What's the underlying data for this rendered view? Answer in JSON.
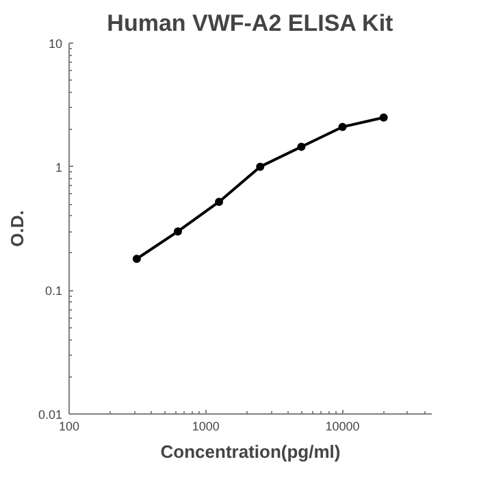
{
  "chart_data": {
    "type": "line",
    "title": "Human VWF-A2 ELISA Kit",
    "xlabel": "Concentration(pg/ml)",
    "ylabel": "O.D.",
    "x": [
      312.5,
      625,
      1250,
      2500,
      5000,
      10000,
      20000
    ],
    "series": [
      {
        "color": "#000000",
        "values": [
          0.18,
          0.3,
          0.52,
          1.0,
          1.45,
          2.1,
          2.5
        ]
      }
    ],
    "log": "xy",
    "xlim": [
      100,
      45000
    ],
    "ylim": [
      0.01,
      10
    ],
    "xticks": [
      100,
      1000,
      10000
    ],
    "yticks": [
      0.01,
      0.1,
      1,
      10
    ],
    "marker": "circle",
    "line_style": "solid",
    "grid": false
  }
}
